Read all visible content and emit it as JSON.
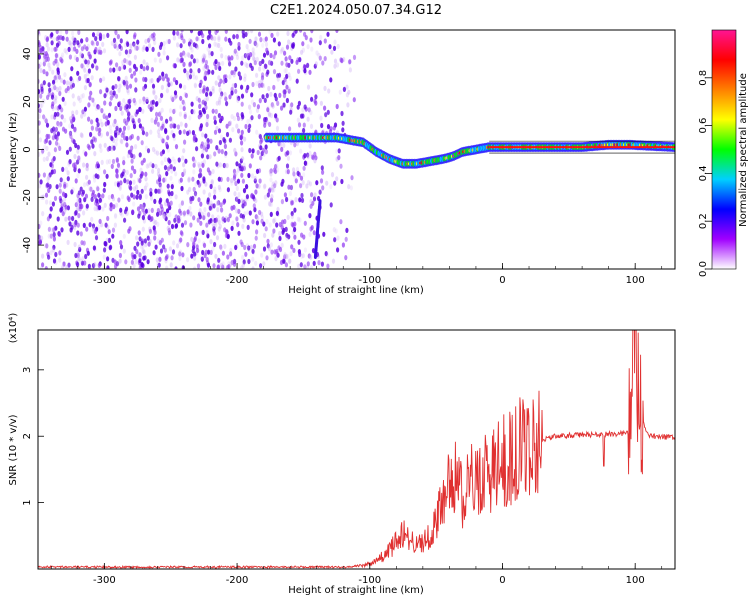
{
  "title": "C2E1.2024.050.07.34.G12",
  "chart_data": [
    {
      "type": "heatmap",
      "xlabel": "Height of straight line (km)",
      "ylabel": "Frequency (Hz)",
      "xlim": [
        -350,
        130
      ],
      "ylim": [
        -50,
        50
      ],
      "xticks": [
        -300,
        -200,
        -100,
        0,
        100
      ],
      "yticks": [
        -40,
        -20,
        0,
        20,
        40
      ],
      "colorbar": {
        "label": "Normalized spectral amplitude",
        "range": [
          0,
          1
        ],
        "ticks": [
          "0.0",
          "0.2",
          "0.4",
          "0.6",
          "0.8"
        ],
        "colors": [
          "#ffffff",
          "#a000ff",
          "#0000ff",
          "#00d0ff",
          "#00ff00",
          "#ffff00",
          "#ff8000",
          "#ff0000",
          "#ff1493"
        ]
      },
      "ridge": {
        "x": [
          -175,
          -150,
          -125,
          -105,
          -95,
          -85,
          -75,
          -65,
          -55,
          -45,
          -38,
          -30,
          -20,
          -10,
          0,
          20,
          40,
          60,
          80,
          95,
          130
        ],
        "y": [
          5,
          5,
          5,
          3,
          -1,
          -4,
          -6,
          -6,
          -5,
          -4,
          -3,
          -1,
          0,
          1,
          1,
          1,
          1,
          1,
          2,
          2,
          1
        ]
      }
    },
    {
      "type": "line",
      "xlabel": "Height of straight line (km)",
      "ylabel": "SNR (10 * v/v)",
      "yscale_label": "(x10⁴)",
      "xlim": [
        -350,
        130
      ],
      "ylim": [
        0,
        3.6
      ],
      "xticks": [
        -300,
        -200,
        -100,
        0,
        100
      ],
      "yticks": [
        1,
        2,
        3
      ],
      "color": "#e03030",
      "envelope": {
        "x": [
          -350,
          -120,
          -105,
          -95,
          -85,
          -75,
          -65,
          -55,
          -45,
          -38,
          -30,
          -20,
          -10,
          0,
          10,
          20,
          30,
          40,
          60,
          80,
          95,
          98,
          100,
          103,
          106,
          110,
          130
        ],
        "y": [
          0.03,
          0.03,
          0.05,
          0.12,
          0.28,
          0.55,
          0.35,
          0.5,
          0.95,
          1.5,
          1.1,
          1.4,
          1.45,
          1.6,
          1.75,
          1.88,
          1.95,
          2.0,
          2.02,
          2.03,
          2.05,
          2.8,
          3.5,
          2.4,
          2.2,
          2.0,
          1.98
        ]
      }
    }
  ]
}
